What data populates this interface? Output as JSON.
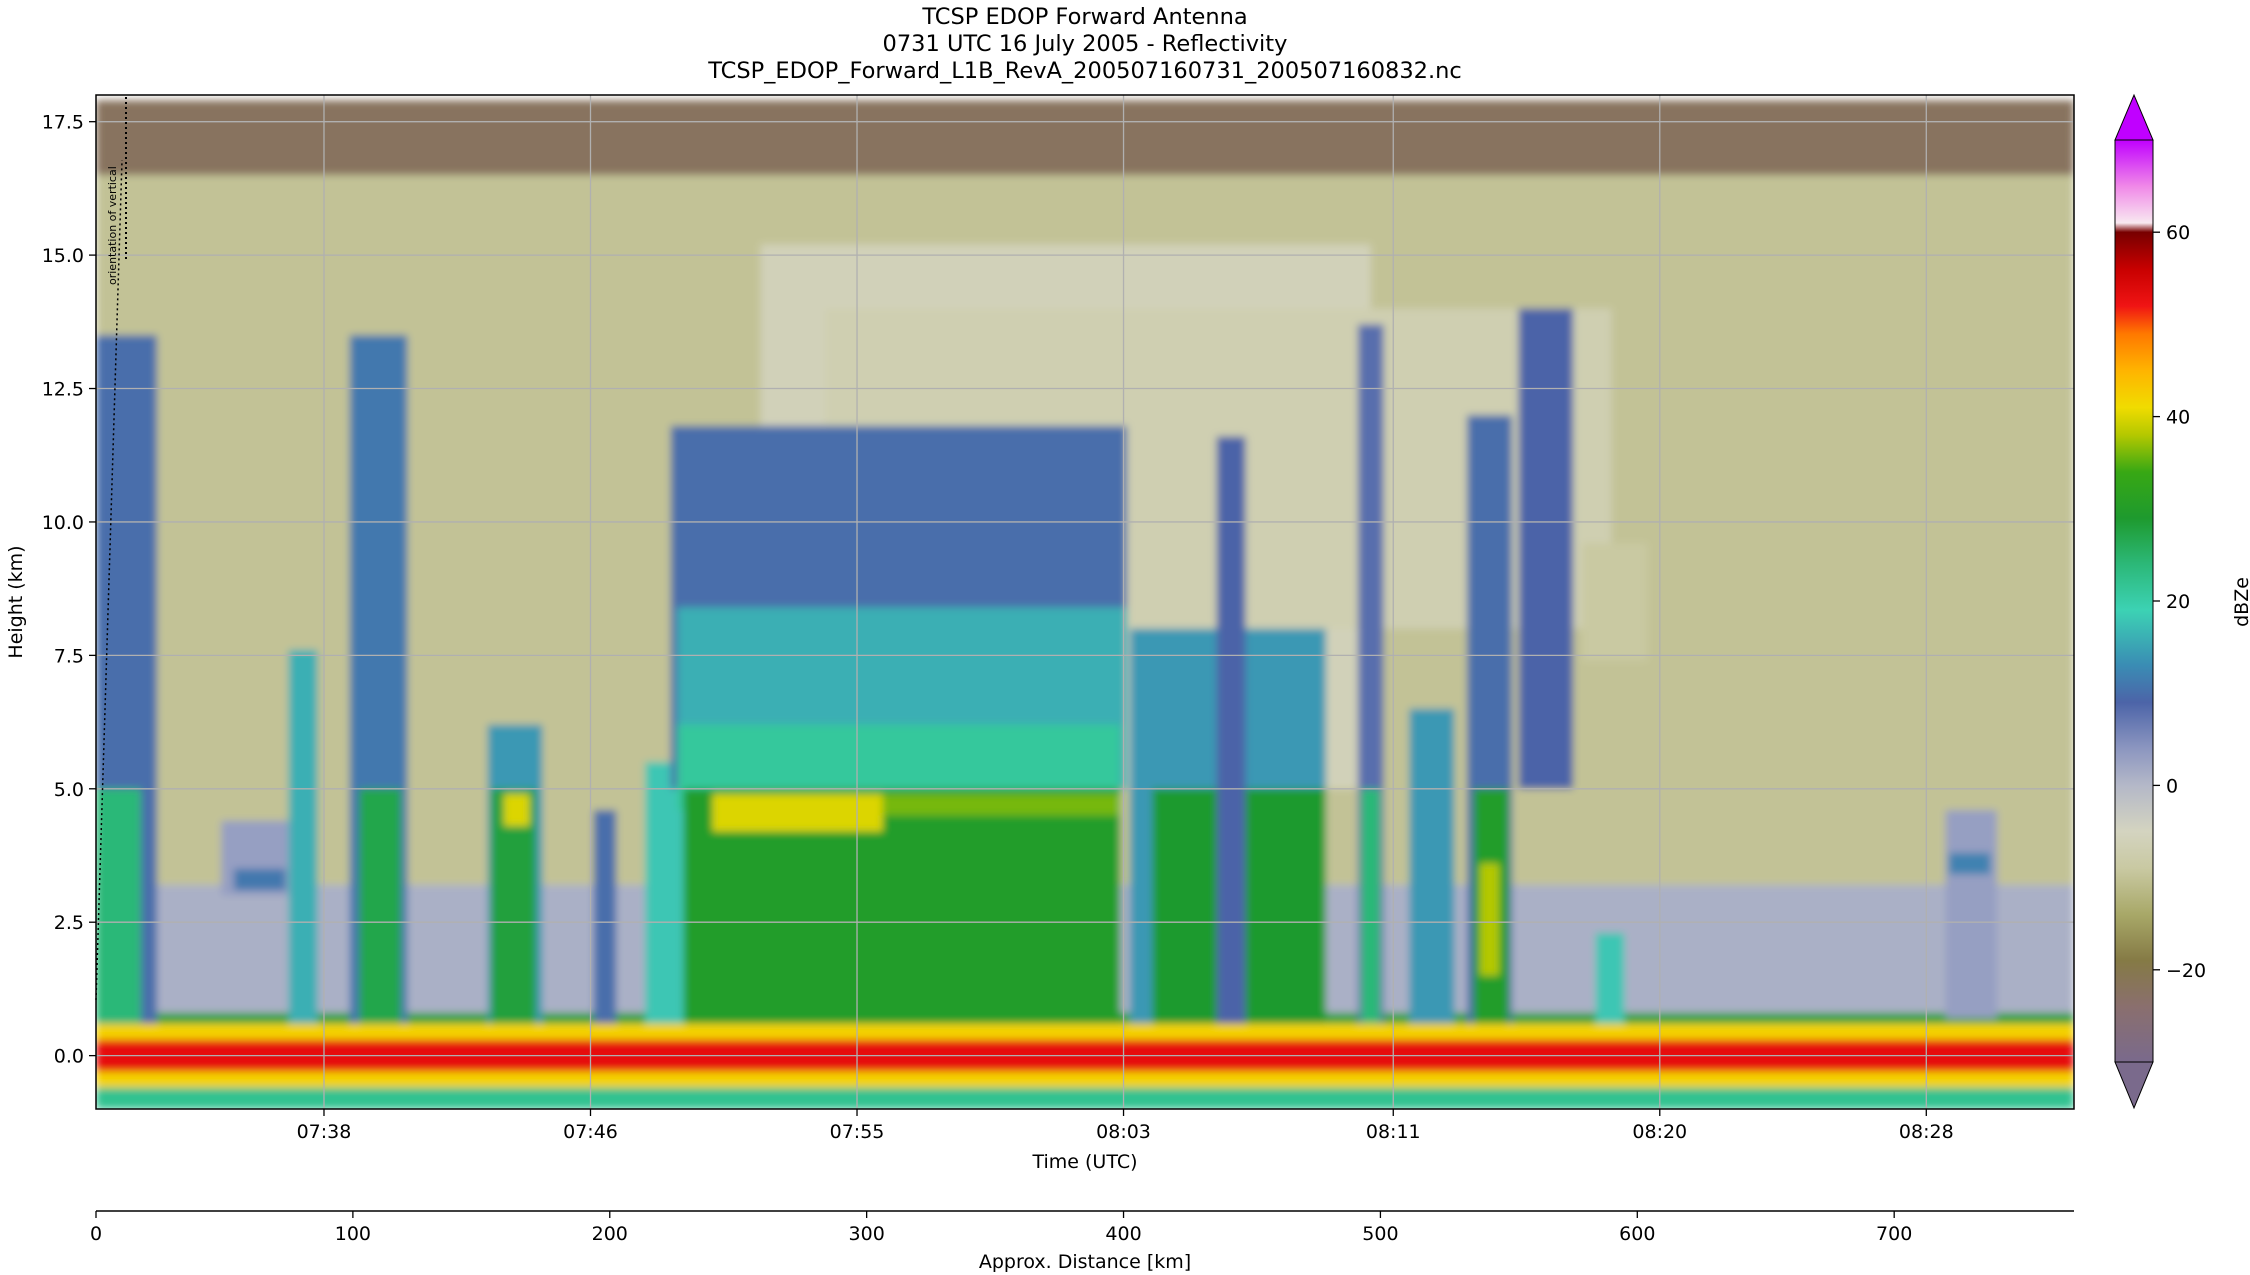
{
  "chart_data": {
    "type": "heatmap",
    "title_lines": [
      "TCSP EDOP Forward Antenna",
      "0731 UTC 16 July 2005 - Reflectivity",
      "TCSP_EDOP_Forward_L1B_RevA_200507160731_200507160832.nc"
    ],
    "xlabel": "Time (UTC)",
    "ylabel": "Height (km)",
    "x2label": "Approx. Distance [km]",
    "colorbar_label": "dBZe",
    "annotation": "orientation of vertical",
    "grid": true,
    "xlim_minutes": [
      451.3,
      512.9
    ],
    "ylim": [
      -1.0,
      18.0
    ],
    "x_ticks": [
      {
        "value": 458.4,
        "label": "07:38"
      },
      {
        "value": 466.7,
        "label": "07:46"
      },
      {
        "value": 475.0,
        "label": "07:55"
      },
      {
        "value": 483.3,
        "label": "08:03"
      },
      {
        "value": 491.7,
        "label": "08:11"
      },
      {
        "value": 500.0,
        "label": "08:20"
      },
      {
        "value": 508.3,
        "label": "08:28"
      }
    ],
    "y_ticks": [
      {
        "value": 0.0,
        "label": "0.0"
      },
      {
        "value": 2.5,
        "label": "2.5"
      },
      {
        "value": 5.0,
        "label": "5.0"
      },
      {
        "value": 7.5,
        "label": "7.5"
      },
      {
        "value": 10.0,
        "label": "10.0"
      },
      {
        "value": 12.5,
        "label": "12.5"
      },
      {
        "value": 15.0,
        "label": "15.0"
      },
      {
        "value": 17.5,
        "label": "17.5"
      }
    ],
    "distance_axis": {
      "range_km": [
        0,
        770
      ],
      "ticks": [
        {
          "value": 0,
          "label": "0"
        },
        {
          "value": 100,
          "label": "100"
        },
        {
          "value": 200,
          "label": "200"
        },
        {
          "value": 300,
          "label": "300"
        },
        {
          "value": 400,
          "label": "400"
        },
        {
          "value": 500,
          "label": "500"
        },
        {
          "value": 600,
          "label": "600"
        },
        {
          "value": 700,
          "label": "700"
        }
      ]
    },
    "colorbar": {
      "range": [
        -30,
        70
      ],
      "extend": "both",
      "ticks": [
        {
          "value": -20,
          "label": "−20"
        },
        {
          "value": 0,
          "label": "0"
        },
        {
          "value": 20,
          "label": "20"
        },
        {
          "value": 40,
          "label": "40"
        },
        {
          "value": 60,
          "label": "60"
        }
      ],
      "stops": [
        {
          "v": -30,
          "c": "#7a6a8c"
        },
        {
          "v": -24,
          "c": "#8a6f6e"
        },
        {
          "v": -19,
          "c": "#857a45"
        },
        {
          "v": -14,
          "c": "#a8a868"
        },
        {
          "v": -9,
          "c": "#c9c9a2"
        },
        {
          "v": -5,
          "c": "#d4d4c0"
        },
        {
          "v": 0,
          "c": "#b4b8c8"
        },
        {
          "v": 4,
          "c": "#8c96c0"
        },
        {
          "v": 9,
          "c": "#4c64a8"
        },
        {
          "v": 13,
          "c": "#3a8cb4"
        },
        {
          "v": 19,
          "c": "#3cd2b4"
        },
        {
          "v": 24,
          "c": "#2cb878"
        },
        {
          "v": 29,
          "c": "#1e9a2e"
        },
        {
          "v": 34,
          "c": "#38a814"
        },
        {
          "v": 38,
          "c": "#b4c800"
        },
        {
          "v": 41,
          "c": "#f0dc00"
        },
        {
          "v": 45,
          "c": "#ffb400"
        },
        {
          "v": 49,
          "c": "#ff7800"
        },
        {
          "v": 52,
          "c": "#f01414"
        },
        {
          "v": 56,
          "c": "#c80000"
        },
        {
          "v": 60,
          "c": "#780000"
        },
        {
          "v": 61,
          "c": "#f8e8f0"
        },
        {
          "v": 65,
          "c": "#f088e8"
        },
        {
          "v": 70,
          "c": "#c000ff"
        }
      ]
    },
    "cells": [
      {
        "t0": 451.3,
        "t1": 512.9,
        "z0": 3.2,
        "z1": 17.9,
        "dbz": -10
      },
      {
        "t0": 451.3,
        "t1": 512.9,
        "z0": 16.5,
        "z1": 17.9,
        "dbz": -22
      },
      {
        "t0": 451.3,
        "t1": 512.9,
        "z0": 0.7,
        "z1": 3.2,
        "dbz": 1
      },
      {
        "t0": 451.3,
        "t1": 512.9,
        "z0": -0.6,
        "z1": 0.6,
        "dbz": 42
      },
      {
        "t0": 451.3,
        "t1": 512.9,
        "z0": -0.3,
        "z1": 0.3,
        "dbz": 53
      },
      {
        "t0": 451.3,
        "t1": 512.9,
        "z0": -1.0,
        "z1": -0.6,
        "dbz": 22
      },
      {
        "t0": 451.3,
        "t1": 512.9,
        "z0": 0.6,
        "z1": 0.8,
        "dbz": 28
      },
      {
        "t0": 472.0,
        "t1": 491.0,
        "z0": 5.0,
        "z1": 15.2,
        "dbz": -6
      },
      {
        "t0": 474.0,
        "t1": 498.5,
        "z0": 8.0,
        "z1": 14.0,
        "dbz": -7
      },
      {
        "t0": 451.3,
        "t1": 453.2,
        "z0": 0.6,
        "z1": 13.5,
        "dbz": 10
      },
      {
        "t0": 451.3,
        "t1": 452.7,
        "z0": 0.6,
        "z1": 5.0,
        "dbz": 24
      },
      {
        "t0": 455.2,
        "t1": 457.4,
        "z0": 3.0,
        "z1": 4.4,
        "dbz": 3
      },
      {
        "t0": 455.6,
        "t1": 457.2,
        "z0": 3.1,
        "z1": 3.5,
        "dbz": 11
      },
      {
        "t0": 457.3,
        "t1": 458.2,
        "z0": 0.6,
        "z1": 7.6,
        "dbz": 16
      },
      {
        "t0": 459.2,
        "t1": 461.0,
        "z0": 0.6,
        "z1": 13.5,
        "dbz": 11
      },
      {
        "t0": 459.5,
        "t1": 460.8,
        "z0": 0.6,
        "z1": 5.0,
        "dbz": 27
      },
      {
        "t0": 463.5,
        "t1": 465.2,
        "z0": 0.6,
        "z1": 6.2,
        "dbz": 14
      },
      {
        "t0": 463.6,
        "t1": 465.0,
        "z0": 0.6,
        "z1": 5.0,
        "dbz": 28
      },
      {
        "t0": 464.0,
        "t1": 464.8,
        "z0": 4.3,
        "z1": 4.9,
        "dbz": 40
      },
      {
        "t0": 466.8,
        "t1": 467.5,
        "z0": 0.6,
        "z1": 4.6,
        "dbz": 10
      },
      {
        "t0": 468.4,
        "t1": 469.6,
        "z0": 0.6,
        "z1": 5.5,
        "dbz": 18
      },
      {
        "t0": 469.2,
        "t1": 483.4,
        "z0": 5.0,
        "z1": 11.8,
        "dbz": 10
      },
      {
        "t0": 469.4,
        "t1": 483.4,
        "z0": 5.0,
        "z1": 8.4,
        "dbz": 16
      },
      {
        "t0": 469.4,
        "t1": 483.2,
        "z0": 4.6,
        "z1": 6.2,
        "dbz": 21
      },
      {
        "t0": 469.6,
        "t1": 483.2,
        "z0": 0.6,
        "z1": 5.0,
        "dbz": 30
      },
      {
        "t0": 470.5,
        "t1": 475.8,
        "z0": 4.2,
        "z1": 4.9,
        "dbz": 40
      },
      {
        "t0": 475.8,
        "t1": 483.2,
        "z0": 4.5,
        "z1": 4.9,
        "dbz": 36
      },
      {
        "t0": 483.5,
        "t1": 489.6,
        "z0": 0.6,
        "z1": 8.0,
        "dbz": 14
      },
      {
        "t0": 484.2,
        "t1": 489.6,
        "z0": 0.6,
        "z1": 5.0,
        "dbz": 29
      },
      {
        "t0": 486.2,
        "t1": 487.1,
        "z0": 0.6,
        "z1": 11.6,
        "dbz": 9
      },
      {
        "t0": 490.6,
        "t1": 491.4,
        "z0": 0.6,
        "z1": 13.7,
        "dbz": 8
      },
      {
        "t0": 490.7,
        "t1": 491.3,
        "z0": 0.6,
        "z1": 5.0,
        "dbz": 24
      },
      {
        "t0": 492.2,
        "t1": 493.6,
        "z0": 0.6,
        "z1": 6.5,
        "dbz": 14
      },
      {
        "t0": 494.0,
        "t1": 495.4,
        "z0": 0.6,
        "z1": 12.0,
        "dbz": 10
      },
      {
        "t0": 494.2,
        "t1": 495.3,
        "z0": 0.6,
        "z1": 5.0,
        "dbz": 30
      },
      {
        "t0": 494.4,
        "t1": 495.0,
        "z0": 1.5,
        "z1": 3.6,
        "dbz": 38
      },
      {
        "t0": 495.6,
        "t1": 497.3,
        "z0": 5.0,
        "z1": 14.0,
        "dbz": 9
      },
      {
        "t0": 497.6,
        "t1": 499.6,
        "z0": 7.4,
        "z1": 9.6,
        "dbz": -9
      },
      {
        "t0": 498.0,
        "t1": 498.9,
        "z0": 0.6,
        "z1": 2.3,
        "dbz": 18
      },
      {
        "t0": 508.9,
        "t1": 510.5,
        "z0": 0.7,
        "z1": 4.6,
        "dbz": 3
      },
      {
        "t0": 509.0,
        "t1": 510.3,
        "z0": 3.4,
        "z1": 3.8,
        "dbz": 12
      }
    ]
  }
}
